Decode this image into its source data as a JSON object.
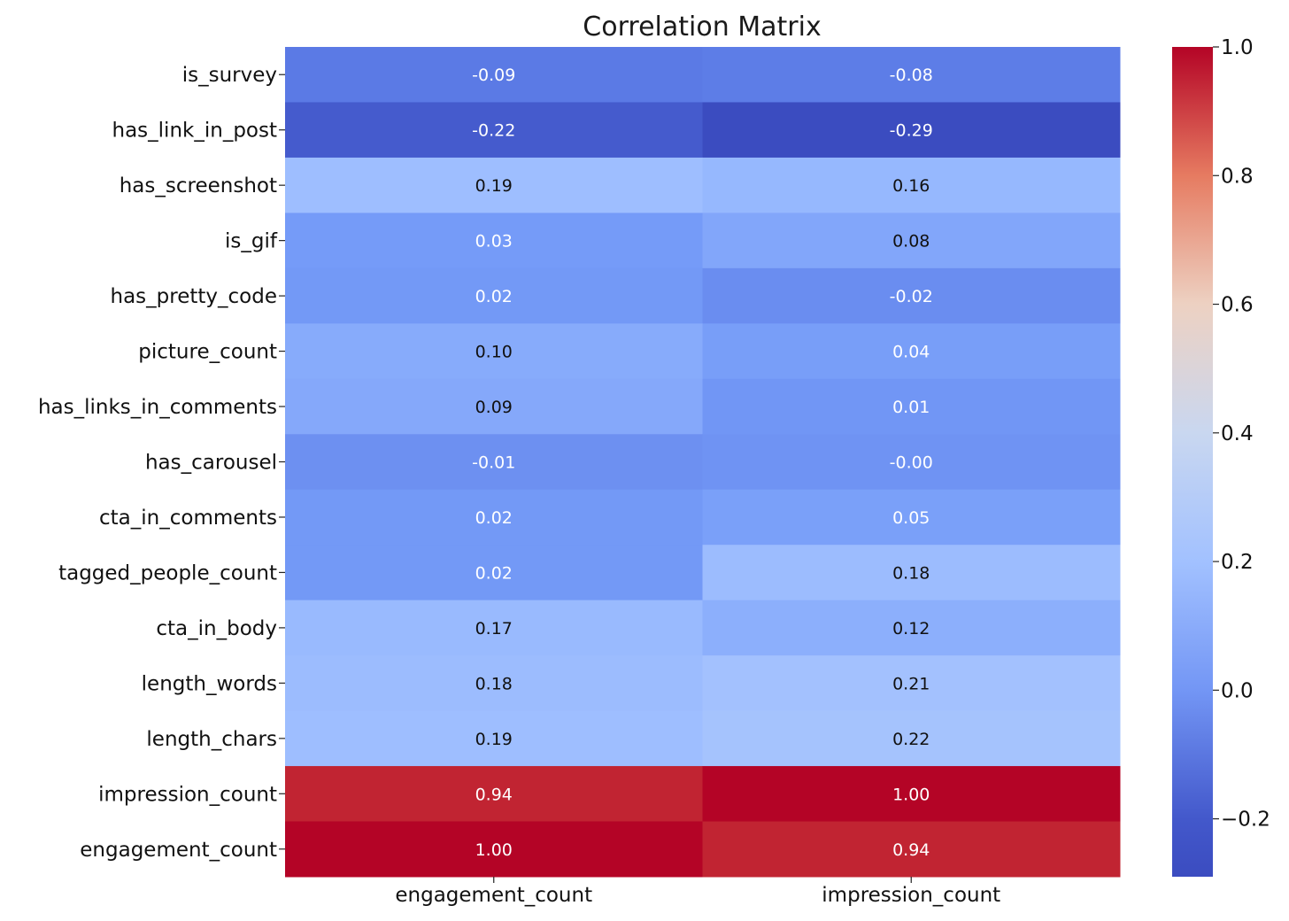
{
  "chart_data": {
    "type": "heatmap",
    "title": "Correlation Matrix",
    "rows": [
      "is_survey",
      "has_link_in_post",
      "has_screenshot",
      "is_gif",
      "has_pretty_code",
      "picture_count",
      "has_links_in_comments",
      "has_carousel",
      "cta_in_comments",
      "tagged_people_count",
      "cta_in_body",
      "length_words",
      "length_chars",
      "impression_count",
      "engagement_count"
    ],
    "columns": [
      "engagement_count",
      "impression_count"
    ],
    "values": [
      [
        -0.09,
        -0.08
      ],
      [
        -0.22,
        -0.29
      ],
      [
        0.19,
        0.16
      ],
      [
        0.03,
        0.08
      ],
      [
        0.02,
        -0.02
      ],
      [
        0.1,
        0.04
      ],
      [
        0.09,
        0.01
      ],
      [
        -0.01,
        -0.0
      ],
      [
        0.02,
        0.05
      ],
      [
        0.02,
        0.18
      ],
      [
        0.17,
        0.12
      ],
      [
        0.18,
        0.21
      ],
      [
        0.19,
        0.22
      ],
      [
        0.94,
        1.0
      ],
      [
        1.0,
        0.94
      ]
    ],
    "value_labels": [
      [
        "-0.09",
        "-0.08"
      ],
      [
        "-0.22",
        "-0.29"
      ],
      [
        "0.19",
        "0.16"
      ],
      [
        "0.03",
        "0.08"
      ],
      [
        "0.02",
        "-0.02"
      ],
      [
        "0.10",
        "0.04"
      ],
      [
        "0.09",
        "0.01"
      ],
      [
        "-0.01",
        "-0.00"
      ],
      [
        "0.02",
        "0.05"
      ],
      [
        "0.02",
        "0.18"
      ],
      [
        "0.17",
        "0.12"
      ],
      [
        "0.18",
        "0.21"
      ],
      [
        "0.19",
        "0.22"
      ],
      [
        "0.94",
        "1.00"
      ],
      [
        "1.00",
        "0.94"
      ]
    ],
    "colormap": "coolwarm",
    "colorbar": {
      "range": [
        -0.29,
        1.0
      ],
      "ticks": [
        -0.2,
        0.0,
        0.2,
        0.4,
        0.6,
        0.8,
        1.0
      ],
      "tick_labels": [
        "−0.2",
        "0.0",
        "0.2",
        "0.4",
        "0.6",
        "0.8",
        "1.0"
      ]
    }
  }
}
